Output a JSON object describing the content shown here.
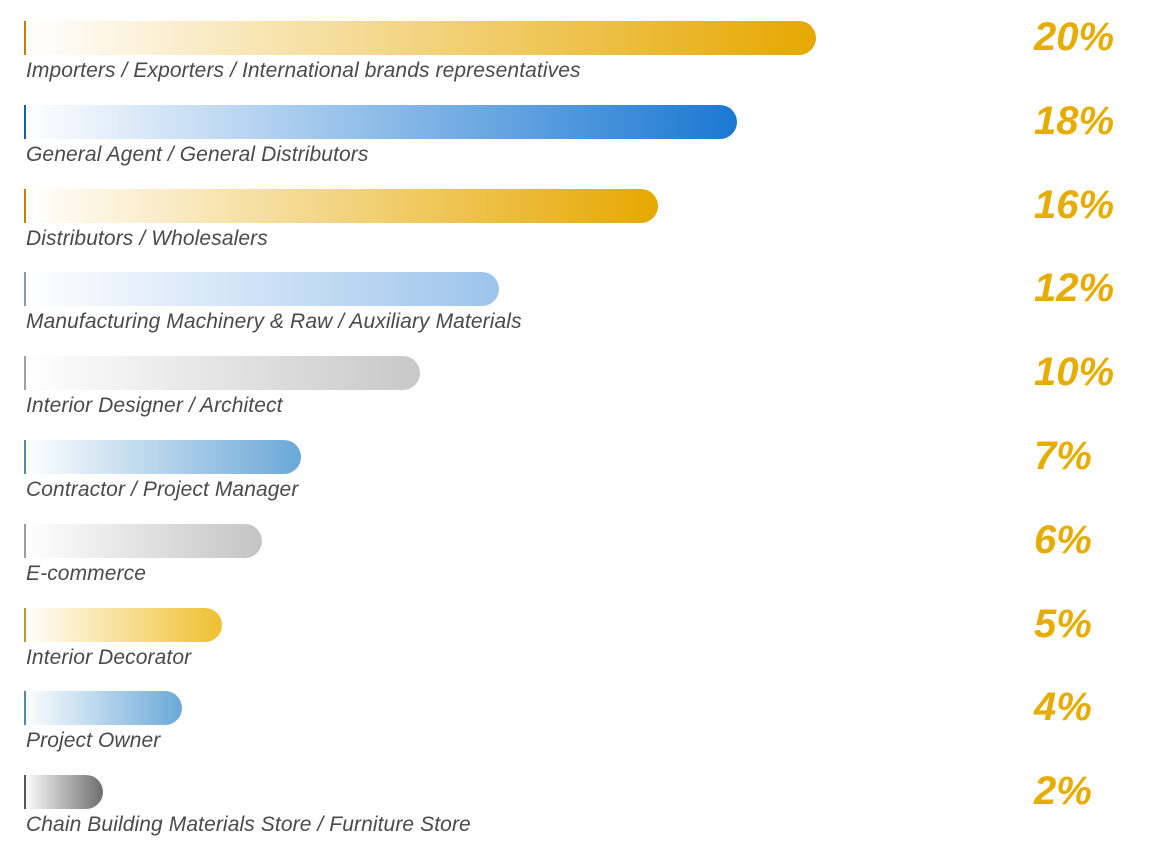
{
  "chart_data": {
    "type": "bar",
    "orientation": "horizontal",
    "categories": [
      "Importers / Exporters / International brands representatives",
      "General Agent / General Distributors",
      "Distributors / Wholesalers",
      "Manufacturing Machinery & Raw / Auxiliary Materials",
      "Interior Designer / Architect",
      "Contractor / Project Manager",
      "E-commerce",
      "Interior Decorator",
      "Project Owner",
      "Chain Building Materials Store / Furniture Store"
    ],
    "values": [
      20,
      18,
      16,
      12,
      10,
      7,
      6,
      5,
      4,
      2
    ],
    "value_labels": [
      "20%",
      "18%",
      "16%",
      "12%",
      "10%",
      "7%",
      "6%",
      "5%",
      "4%",
      "2%"
    ],
    "unit": "%",
    "bar_colors": [
      "#e6a800",
      "#1a78d2",
      "#e6a800",
      "#9cc4ec",
      "#c8c8c8",
      "#6aa8d8",
      "#c4c4c4",
      "#f0c030",
      "#6aa8d8",
      "#6e6e6e"
    ],
    "value_label_color": "#e6ac00",
    "grid": false,
    "legend": "none"
  }
}
